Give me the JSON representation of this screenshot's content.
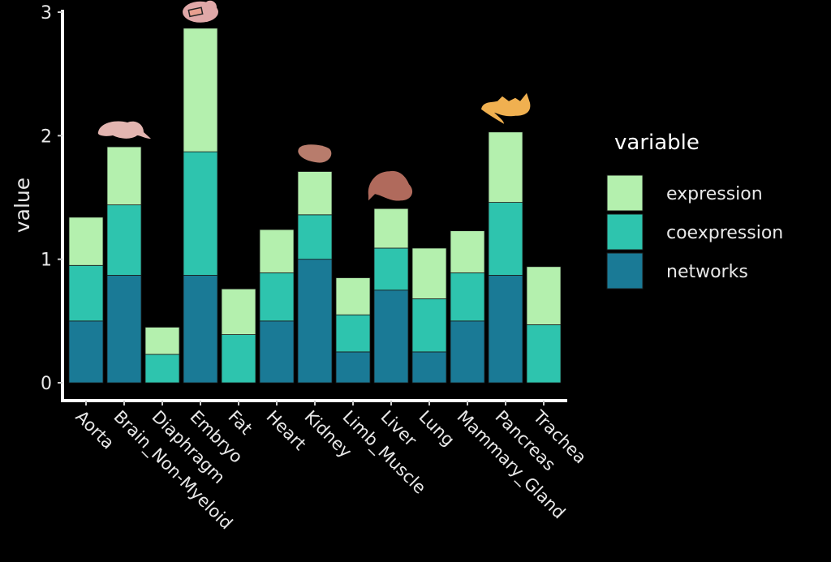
{
  "chart_data": {
    "type": "bar",
    "stacked": true,
    "title": "",
    "xlabel": "",
    "ylabel": "value",
    "ylim": [
      0,
      3
    ],
    "yticks": [
      0,
      1,
      2,
      3
    ],
    "grid": false,
    "legend": {
      "title": "variable",
      "placement": "right",
      "entries": [
        "expression",
        "coexpression",
        "networks"
      ]
    },
    "categories": [
      "Aorta",
      "Brain_Non-Myeloid",
      "Diaphragm",
      "Embryo",
      "Fat",
      "Heart",
      "Kidney",
      "Limb_Muscle",
      "Liver",
      "Lung",
      "Mammary_Gland",
      "Pancreas",
      "Trachea"
    ],
    "series": [
      {
        "name": "networks",
        "color": "#1a7a96",
        "values": [
          0.5,
          0.87,
          0.0,
          0.87,
          0.0,
          0.5,
          1.0,
          0.25,
          0.75,
          0.25,
          0.5,
          0.87,
          0.0
        ]
      },
      {
        "name": "coexpression",
        "color": "#2ec4ae",
        "values": [
          0.45,
          0.57,
          0.23,
          1.0,
          0.39,
          0.39,
          0.36,
          0.3,
          0.34,
          0.43,
          0.39,
          0.59,
          0.47
        ]
      },
      {
        "name": "expression",
        "color": "#b4f0ae",
        "values": [
          0.39,
          0.47,
          0.22,
          1.0,
          0.37,
          0.35,
          0.35,
          0.3,
          0.32,
          0.41,
          0.34,
          0.57,
          0.47
        ]
      }
    ],
    "annotations": [
      {
        "category": "Brain_Non-Myeloid",
        "icon": "brain-icon"
      },
      {
        "category": "Embryo",
        "icon": "embryo-icon"
      },
      {
        "category": "Kidney",
        "icon": "kidney-icon"
      },
      {
        "category": "Liver",
        "icon": "liver-icon"
      },
      {
        "category": "Pancreas",
        "icon": "pancreas-icon"
      }
    ]
  }
}
